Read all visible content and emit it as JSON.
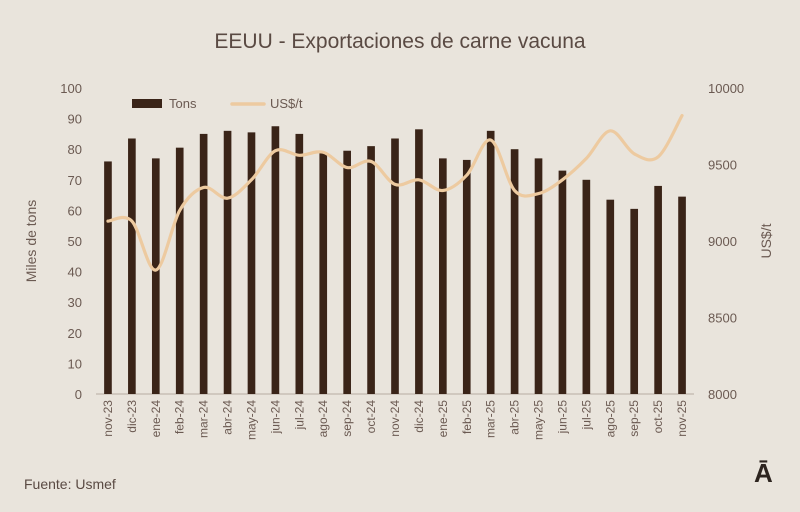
{
  "chart_data": {
    "type": "bar",
    "title": "EEUU - Exportaciones de carne vacuna",
    "ylabel": "Miles de tons",
    "y2label": "US$/t",
    "ylim": [
      0,
      100
    ],
    "y2lim": [
      8000,
      10000
    ],
    "yticks": [
      0,
      10,
      20,
      30,
      40,
      50,
      60,
      70,
      80,
      90,
      100
    ],
    "y2ticks": [
      8000,
      8500,
      9000,
      9500,
      10000
    ],
    "grid": false,
    "legend": "top-left",
    "categories": [
      "nov-23",
      "dic-23",
      "ene-24",
      "feb-24",
      "mar-24",
      "abr-24",
      "may-24",
      "jun-24",
      "jul-24",
      "ago-24",
      "sep-24",
      "oct-24",
      "nov-24",
      "dic-24",
      "ene-25",
      "feb-25",
      "mar-25",
      "abr-25",
      "may-25",
      "jun-25",
      "jul-25",
      "ago-25",
      "sep-25",
      "oct-25",
      "nov-25"
    ],
    "series": [
      {
        "name": "Tons",
        "type": "bar",
        "axis": "left",
        "color": "#3a2418",
        "values": [
          76,
          83.5,
          77,
          80.5,
          85,
          86,
          85.5,
          87.5,
          85,
          79,
          79.5,
          81,
          83.5,
          86.5,
          77,
          76.5,
          86,
          80,
          77,
          73,
          70,
          63.5,
          60.5,
          68,
          64.5
        ]
      },
      {
        "name": "US$/t",
        "type": "line",
        "axis": "right",
        "color": "#edcaa0",
        "values": [
          9130,
          9130,
          8810,
          9200,
          9350,
          9280,
          9400,
          9590,
          9560,
          9580,
          9480,
          9520,
          9370,
          9400,
          9330,
          9430,
          9660,
          9330,
          9310,
          9400,
          9540,
          9720,
          9570,
          9550,
          9820
        ]
      }
    ]
  },
  "footer": {
    "source": "Fuente: Usmef",
    "brand": "Ā"
  }
}
